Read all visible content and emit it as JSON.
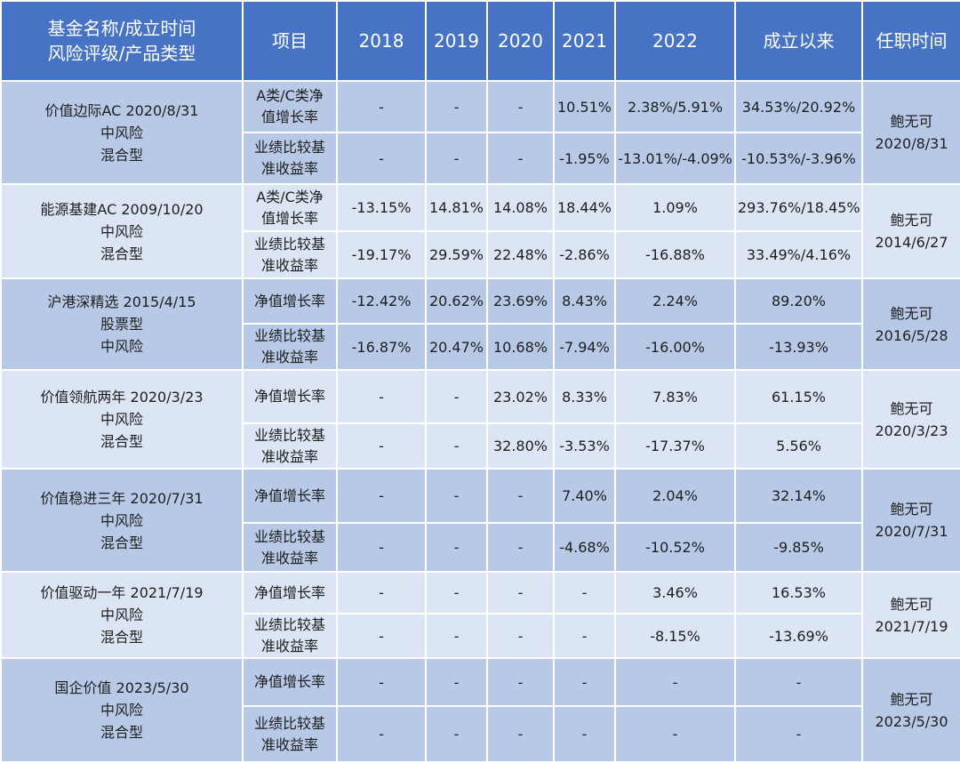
{
  "header": {
    "fund": [
      "基金名称/成立时间",
      "风险评级/产品类型"
    ],
    "item": "项目",
    "years": [
      "2018",
      "2019",
      "2020",
      "2021",
      "2022"
    ],
    "since": "成立以来",
    "tenure": "任职时间"
  },
  "funds": [
    {
      "lines": [
        "价值边际AC 2020/8/31",
        "中风险",
        "混合型"
      ],
      "manager": "鲍无可",
      "tenure_date": "2020/8/31",
      "rows": [
        {
          "item": [
            "A类/C类净",
            "值增长率"
          ],
          "values": [
            "-",
            "-",
            "-",
            "10.51%",
            "2.38%/5.91%",
            "34.53%/20.92%"
          ]
        },
        {
          "item": [
            "业绩比较基",
            "准收益率"
          ],
          "values": [
            "-",
            "-",
            "-",
            "-1.95%",
            "-13.01%/-4.09%",
            "-10.53%/-3.96%"
          ]
        }
      ]
    },
    {
      "lines": [
        "能源基建AC 2009/10/20",
        "中风险",
        "混合型"
      ],
      "manager": "鲍无可",
      "tenure_date": "2014/6/27",
      "rows": [
        {
          "item": [
            "A类/C类净",
            "值增长率"
          ],
          "values": [
            "-13.15%",
            "14.81%",
            "14.08%",
            "18.44%",
            "1.09%",
            "293.76%/18.45%"
          ]
        },
        {
          "item": [
            "业绩比较基",
            "准收益率"
          ],
          "values": [
            "-19.17%",
            "29.59%",
            "22.48%",
            "-2.86%",
            "-16.88%",
            "33.49%/4.16%"
          ]
        }
      ]
    },
    {
      "lines": [
        "沪港深精选 2015/4/15",
        "股票型",
        "中风险"
      ],
      "manager": "鲍无可",
      "tenure_date": "2016/5/28",
      "rows": [
        {
          "item": [
            "净值增长率"
          ],
          "values": [
            "-12.42%",
            "20.62%",
            "23.69%",
            "8.43%",
            "2.24%",
            "89.20%"
          ]
        },
        {
          "item": [
            "业绩比较基",
            "准收益率"
          ],
          "values": [
            "-16.87%",
            "20.47%",
            "10.68%",
            "-7.94%",
            "-16.00%",
            "-13.93%"
          ]
        }
      ]
    },
    {
      "lines": [
        "价值领航两年 2020/3/23",
        "中风险",
        "混合型"
      ],
      "manager": "鲍无可",
      "tenure_date": "2020/3/23",
      "rows": [
        {
          "item": [
            "净值增长率"
          ],
          "values": [
            "-",
            "-",
            "23.02%",
            "8.33%",
            "7.83%",
            "61.15%"
          ]
        },
        {
          "item": [
            "业绩比较基",
            "准收益率"
          ],
          "values": [
            "-",
            "-",
            "32.80%",
            "-3.53%",
            "-17.37%",
            "5.56%"
          ]
        }
      ]
    },
    {
      "lines": [
        "价值稳进三年 2020/7/31",
        "中风险",
        "混合型"
      ],
      "manager": "鲍无可",
      "tenure_date": "2020/7/31",
      "rows": [
        {
          "item": [
            "净值增长率"
          ],
          "values": [
            "-",
            "-",
            "-",
            "7.40%",
            "2.04%",
            "32.14%"
          ]
        },
        {
          "item": [
            "业绩比较基",
            "准收益率"
          ],
          "values": [
            "-",
            "-",
            "-",
            "-4.68%",
            "-10.52%",
            "-9.85%"
          ]
        }
      ]
    },
    {
      "lines": [
        "价值驱动一年 2021/7/19",
        "中风险",
        "混合型"
      ],
      "manager": "鲍无可",
      "tenure_date": "2021/7/19",
      "rows": [
        {
          "item": [
            "净值增长率"
          ],
          "values": [
            "-",
            "-",
            "-",
            "-",
            "3.46%",
            "16.53%"
          ]
        },
        {
          "item": [
            "业绩比较基",
            "准收益率"
          ],
          "values": [
            "-",
            "-",
            "-",
            "-",
            "-8.15%",
            "-13.69%"
          ]
        }
      ]
    },
    {
      "lines": [
        "国企价值 2023/5/30",
        "中风险",
        "混合型"
      ],
      "manager": "鲍无可",
      "tenure_date": "2023/5/30",
      "rows": [
        {
          "item": [
            "净值增长率"
          ],
          "values": [
            "-",
            "-",
            "-",
            "-",
            "-",
            "-"
          ]
        },
        {
          "item": [
            "业绩比较基",
            "准收益率"
          ],
          "values": [
            "-",
            "-",
            "-",
            "-",
            "-",
            "-"
          ]
        }
      ]
    }
  ]
}
